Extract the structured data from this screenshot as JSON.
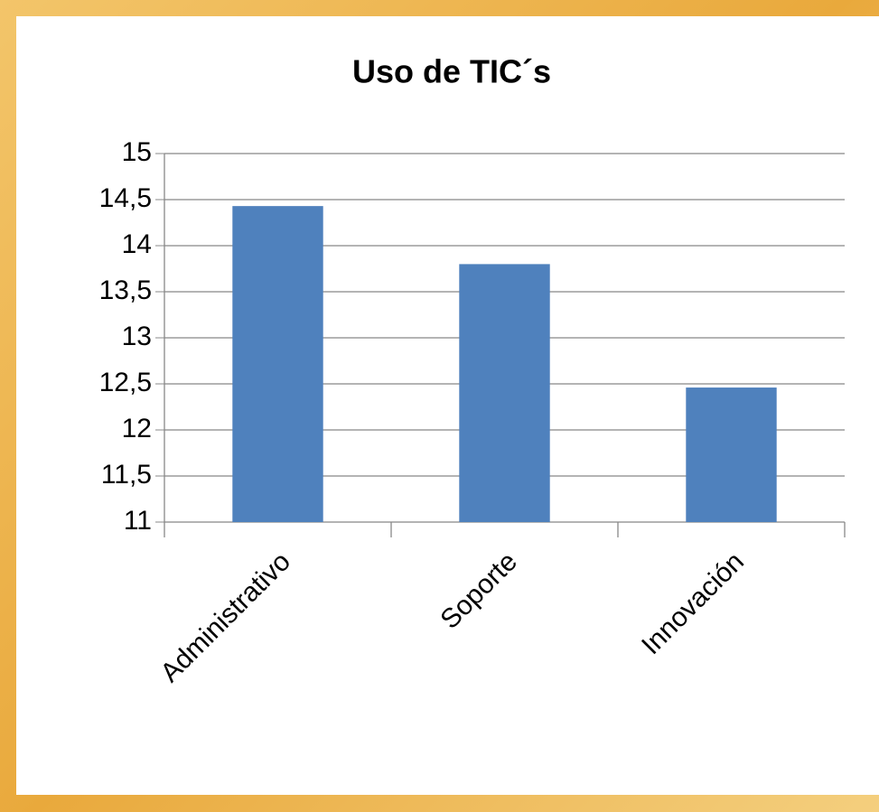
{
  "chart_data": {
    "type": "bar",
    "title": "Uso de TIC´s",
    "categories": [
      "Administrativo",
      "Soporte",
      "Innovación"
    ],
    "values": [
      14.43,
      13.8,
      12.46
    ],
    "color": "#4f81bd",
    "ylim": [
      11,
      15
    ],
    "yticks": [
      11,
      {
        "value": 11.5,
        "label": "11,5"
      },
      12,
      {
        "value": 12.5,
        "label": "12,5"
      },
      13,
      {
        "value": 13.5,
        "label": "13,5"
      },
      14,
      {
        "value": 14.5,
        "label": "14,5"
      },
      15
    ],
    "grid": true
  }
}
